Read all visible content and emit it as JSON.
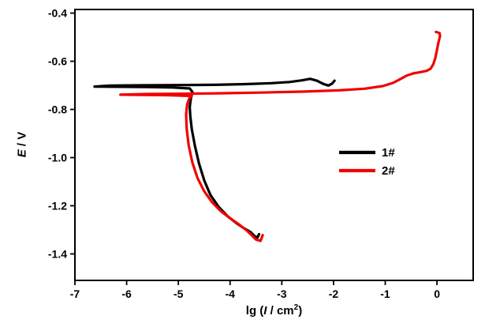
{
  "chart_data": {
    "type": "line",
    "title": "",
    "xlabel": "lg (I / cm2)",
    "xlabel_parts": {
      "prefix": "lg (",
      "var": "I",
      "mid": " / cm",
      "sup": "2",
      "suffix": ")"
    },
    "ylabel": "E / V",
    "ylabel_parts": {
      "var": "E",
      "rest": " / V"
    },
    "xlim": [
      -7,
      0.7
    ],
    "ylim": [
      -1.51,
      -0.385
    ],
    "x_ticks": [
      -7,
      -6,
      -5,
      -4,
      -3,
      -2,
      -1,
      0
    ],
    "x_tick_labels": [
      "-7",
      "-6",
      "-5",
      "-4",
      "-3",
      "-2",
      "-1",
      "0"
    ],
    "y_ticks": [
      -0.4,
      -0.6,
      -0.8,
      -1.0,
      -1.2,
      -1.4
    ],
    "y_tick_labels": [
      "-0.4",
      "-0.6",
      "-0.8",
      "-1.0",
      "-1.2",
      "-1.4"
    ],
    "grid": false,
    "frame": true,
    "axis_color": "#000000",
    "legend": {
      "position": "center-right",
      "entries": [
        {
          "label": "1#",
          "color": "#000000"
        },
        {
          "label": "2#",
          "color": "#f10000"
        }
      ]
    },
    "series": [
      {
        "name": "1#",
        "color": "#000000",
        "points": [
          [
            -3.44,
            -1.318
          ],
          [
            -3.47,
            -1.332
          ],
          [
            -3.52,
            -1.327
          ],
          [
            -3.6,
            -1.31
          ],
          [
            -3.72,
            -1.295
          ],
          [
            -3.88,
            -1.272
          ],
          [
            -4.05,
            -1.243
          ],
          [
            -4.22,
            -1.205
          ],
          [
            -4.38,
            -1.155
          ],
          [
            -4.5,
            -1.095
          ],
          [
            -4.6,
            -1.025
          ],
          [
            -4.68,
            -0.952
          ],
          [
            -4.74,
            -0.882
          ],
          [
            -4.77,
            -0.828
          ],
          [
            -4.78,
            -0.79
          ],
          [
            -4.76,
            -0.757
          ],
          [
            -4.73,
            -0.727
          ],
          [
            -4.78,
            -0.713
          ],
          [
            -5.1,
            -0.709
          ],
          [
            -5.6,
            -0.707
          ],
          [
            -6.1,
            -0.706
          ],
          [
            -6.62,
            -0.705
          ],
          [
            -6.3,
            -0.701
          ],
          [
            -5.7,
            -0.7
          ],
          [
            -5.0,
            -0.699
          ],
          [
            -4.3,
            -0.698
          ],
          [
            -3.7,
            -0.695
          ],
          [
            -3.2,
            -0.691
          ],
          [
            -2.85,
            -0.686
          ],
          [
            -2.6,
            -0.679
          ],
          [
            -2.45,
            -0.673
          ],
          [
            -2.32,
            -0.681
          ],
          [
            -2.2,
            -0.694
          ],
          [
            -2.1,
            -0.701
          ],
          [
            -2.03,
            -0.693
          ],
          [
            -1.98,
            -0.681
          ]
        ]
      },
      {
        "name": "2#",
        "color": "#f10000",
        "points": [
          [
            -3.37,
            -1.322
          ],
          [
            -3.41,
            -1.346
          ],
          [
            -3.5,
            -1.34
          ],
          [
            -3.58,
            -1.323
          ],
          [
            -3.68,
            -1.302
          ],
          [
            -3.82,
            -1.279
          ],
          [
            -4.0,
            -1.252
          ],
          [
            -4.18,
            -1.222
          ],
          [
            -4.35,
            -1.185
          ],
          [
            -4.5,
            -1.14
          ],
          [
            -4.63,
            -1.085
          ],
          [
            -4.73,
            -1.02
          ],
          [
            -4.8,
            -0.95
          ],
          [
            -4.84,
            -0.88
          ],
          [
            -4.85,
            -0.82
          ],
          [
            -4.83,
            -0.78
          ],
          [
            -4.79,
            -0.755
          ],
          [
            -4.74,
            -0.744
          ],
          [
            -5.2,
            -0.741
          ],
          [
            -5.7,
            -0.74
          ],
          [
            -6.12,
            -0.739
          ],
          [
            -5.6,
            -0.736
          ],
          [
            -4.9,
            -0.735
          ],
          [
            -4.2,
            -0.733
          ],
          [
            -3.4,
            -0.73
          ],
          [
            -2.6,
            -0.726
          ],
          [
            -1.9,
            -0.721
          ],
          [
            -1.4,
            -0.714
          ],
          [
            -1.05,
            -0.703
          ],
          [
            -0.85,
            -0.69
          ],
          [
            -0.7,
            -0.673
          ],
          [
            -0.58,
            -0.659
          ],
          [
            -0.45,
            -0.65
          ],
          [
            -0.32,
            -0.645
          ],
          [
            -0.2,
            -0.64
          ],
          [
            -0.12,
            -0.63
          ],
          [
            -0.07,
            -0.612
          ],
          [
            -0.03,
            -0.585
          ],
          [
            0.0,
            -0.553
          ],
          [
            0.03,
            -0.52
          ],
          [
            0.06,
            -0.495
          ],
          [
            0.05,
            -0.483
          ],
          [
            -0.02,
            -0.478
          ]
        ]
      }
    ]
  }
}
